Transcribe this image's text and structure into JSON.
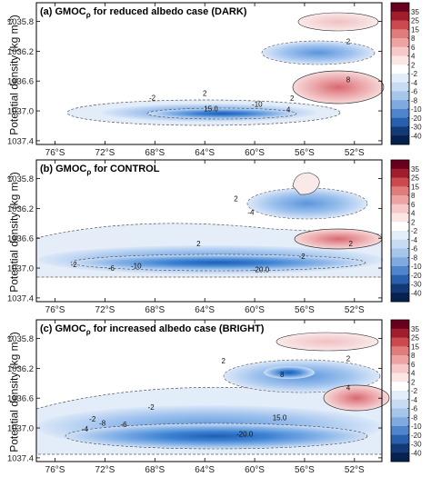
{
  "figure": {
    "ylabel": "Potential density (kg m",
    "ylabel_exp": "-3",
    "ylabel_close": ")"
  },
  "chart_data": [
    {
      "type": "heatmap",
      "title": "(a) GMOC",
      "title_sub": "ρ",
      "title_rest": " for reduced albedo case  (DARK)",
      "x_ticks": [
        "76°S",
        "72°S",
        "68°S",
        "64°S",
        "60°S",
        "56°S",
        "52°S"
      ],
      "x_tick_values": [
        -76,
        -72,
        -68,
        -64,
        -60,
        -56,
        -52
      ],
      "xlim": [
        -77.5,
        -49.8
      ],
      "y_ticks": [
        "1035.8",
        "1036.2",
        "1036.6",
        "1037.0",
        "1037.4"
      ],
      "y_tick_values": [
        1035.8,
        1036.2,
        1036.6,
        1037.0,
        1037.4
      ],
      "ylim": [
        1035.55,
        1037.45
      ],
      "colorbar_ticks": [
        "35",
        "25",
        "15",
        "8",
        "6",
        "4",
        "2",
        "-2",
        "-4",
        "-6",
        "-8",
        "-10",
        "-20",
        "-30",
        "-40"
      ],
      "contour_labels": [
        {
          "text": "2",
          "x": -64.0,
          "y": 1036.76
        },
        {
          "text": "2",
          "x": -52.5,
          "y": 1036.07
        },
        {
          "text": "-2",
          "x": -68.2,
          "y": 1036.82
        },
        {
          "text": "15.0",
          "x": -63.5,
          "y": 1036.97
        },
        {
          "text": "-10",
          "x": -59.8,
          "y": 1036.91
        },
        {
          "text": "4",
          "x": -57.3,
          "y": 1036.98
        },
        {
          "text": "8",
          "x": -52.5,
          "y": 1036.58
        },
        {
          "text": "2",
          "x": -57.0,
          "y": 1036.83
        }
      ]
    },
    {
      "type": "heatmap",
      "title": "(b) GMOC",
      "title_sub": "ρ",
      "title_rest": " for CONTROL",
      "x_ticks": [
        "76°S",
        "72°S",
        "68°S",
        "64°S",
        "60°S",
        "56°S",
        "52°S"
      ],
      "x_tick_values": [
        -76,
        -72,
        -68,
        -64,
        -60,
        -56,
        -52
      ],
      "xlim": [
        -77.5,
        -49.8
      ],
      "y_ticks": [
        "1035.8",
        "1036.2",
        "1036.6",
        "1037.0",
        "1037.4"
      ],
      "y_tick_values": [
        1035.8,
        1036.2,
        1036.6,
        1037.0,
        1037.4
      ],
      "ylim": [
        1035.55,
        1037.45
      ],
      "colorbar_ticks": [
        "35",
        "25",
        "15",
        "8",
        "6",
        "4",
        "2",
        "-2",
        "-4",
        "-6",
        "-8",
        "-10",
        "-20",
        "-30",
        "-40"
      ],
      "contour_labels": [
        {
          "text": "2",
          "x": -61.5,
          "y": 1036.07
        },
        {
          "text": "-4",
          "x": -60.3,
          "y": 1036.25
        },
        {
          "text": "2",
          "x": -64.5,
          "y": 1036.67
        },
        {
          "text": "-2",
          "x": -74.5,
          "y": 1036.95
        },
        {
          "text": "-6",
          "x": -71.5,
          "y": 1037.0
        },
        {
          "text": "-10",
          "x": -69.5,
          "y": 1036.97
        },
        {
          "text": "-20.0",
          "x": -59.5,
          "y": 1037.02
        },
        {
          "text": "-2",
          "x": -56.2,
          "y": 1036.84
        },
        {
          "text": "2",
          "x": -52.3,
          "y": 1036.67
        }
      ]
    },
    {
      "type": "heatmap",
      "title": "(c) GMOC",
      "title_sub": "ρ",
      "title_rest": " for increased albedo case  (BRIGHT)",
      "x_ticks": [
        "76°S",
        "72°S",
        "68°S",
        "64°S",
        "60°S",
        "56°S",
        "52°S"
      ],
      "x_tick_values": [
        -76,
        -72,
        -68,
        -64,
        -60,
        -56,
        -52
      ],
      "xlim": [
        -77.5,
        -49.8
      ],
      "y_ticks": [
        "1035.8",
        "1036.2",
        "1036.6",
        "1037.0",
        "1037.4"
      ],
      "y_tick_values": [
        1035.8,
        1036.2,
        1036.6,
        1037.0,
        1037.4
      ],
      "ylim": [
        1035.55,
        1037.45
      ],
      "colorbar_ticks": [
        "35",
        "25",
        "15",
        "8",
        "6",
        "4",
        "2",
        "-2",
        "-4",
        "-6",
        "-8",
        "-10",
        "-20",
        "-30",
        "-40"
      ],
      "contour_labels": [
        {
          "text": "2",
          "x": -62.5,
          "y": 1036.1
        },
        {
          "text": "8",
          "x": -57.8,
          "y": 1036.28
        },
        {
          "text": "2",
          "x": -52.5,
          "y": 1036.07
        },
        {
          "text": "-2",
          "x": -68.3,
          "y": 1036.72
        },
        {
          "text": "15.0",
          "x": -58.0,
          "y": 1036.86
        },
        {
          "text": "-2",
          "x": -73.0,
          "y": 1036.88
        },
        {
          "text": "-6",
          "x": -70.5,
          "y": 1036.95
        },
        {
          "text": "-8",
          "x": -72.2,
          "y": 1036.93
        },
        {
          "text": "-4",
          "x": -73.6,
          "y": 1037.01
        },
        {
          "text": "-20.0",
          "x": -60.8,
          "y": 1037.08
        },
        {
          "text": "4",
          "x": -52.5,
          "y": 1036.46
        }
      ]
    }
  ]
}
